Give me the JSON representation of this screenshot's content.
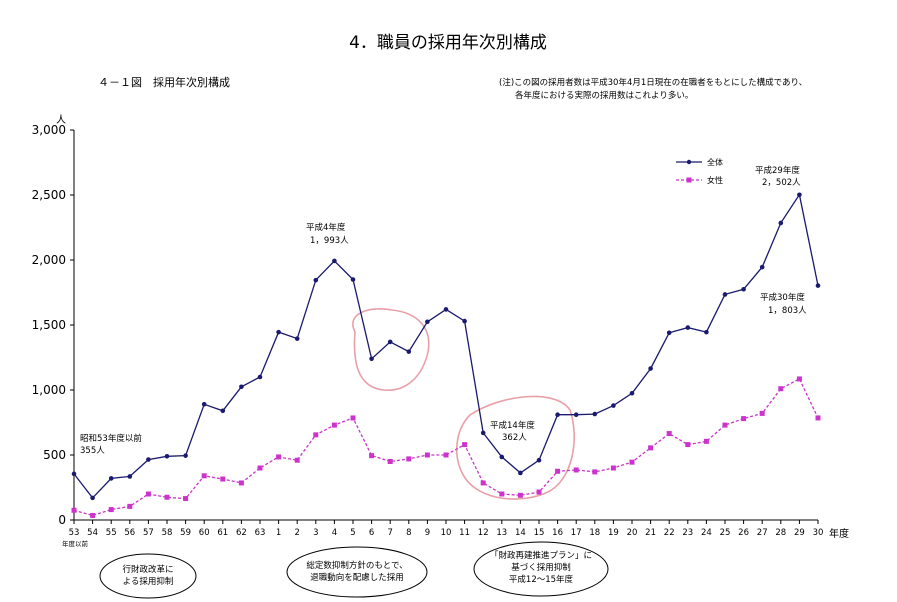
{
  "page_title": "4．職員の採用年次別構成",
  "figure_label": "４－１図　採用年次別構成",
  "note": {
    "line1": "(注)この図の採用者数は平成30年4月1日現在の在職者をもとにした構成であり、",
    "line2": "各年度における実際の採用数はこれより多い。"
  },
  "colors": {
    "total": "#1a1a6e",
    "female": "#cc33cc",
    "highlight_circle": "#e8a0a8"
  },
  "chart_data": {
    "type": "line",
    "y_unit": "人",
    "x_unit": "年度",
    "ylim": [
      0,
      3000
    ],
    "yticks": [
      "0",
      "500",
      "1,000",
      "1,500",
      "2,000",
      "2,500",
      "3,000"
    ],
    "grid": false,
    "legend_placement": "top-right",
    "categories": [
      "53",
      "54",
      "55",
      "56",
      "57",
      "58",
      "59",
      "60",
      "61",
      "62",
      "63",
      "1",
      "2",
      "3",
      "4",
      "5",
      "6",
      "7",
      "8",
      "9",
      "10",
      "11",
      "12",
      "13",
      "14",
      "15",
      "16",
      "17",
      "18",
      "19",
      "20",
      "21",
      "22",
      "23",
      "24",
      "25",
      "26",
      "27",
      "28",
      "29",
      "30"
    ],
    "first_category_note": "年度以前",
    "series": [
      {
        "name": "全体",
        "values": [
          355,
          170,
          320,
          335,
          465,
          490,
          495,
          890,
          840,
          1025,
          1100,
          1445,
          1395,
          1845,
          1993,
          1850,
          1240,
          1370,
          1295,
          1525,
          1620,
          1530,
          670,
          485,
          362,
          460,
          810,
          810,
          815,
          880,
          975,
          1165,
          1440,
          1480,
          1445,
          1735,
          1775,
          1945,
          2285,
          2502,
          1803
        ]
      },
      {
        "name": "女性",
        "values": [
          75,
          35,
          80,
          105,
          200,
          175,
          165,
          340,
          315,
          285,
          400,
          485,
          460,
          655,
          730,
          785,
          495,
          450,
          470,
          500,
          500,
          580,
          285,
          200,
          190,
          215,
          375,
          385,
          370,
          400,
          445,
          555,
          665,
          580,
          605,
          730,
          780,
          820,
          1010,
          1085,
          785
        ]
      }
    ],
    "annotations": {
      "s53_label": "昭和53年度以前",
      "s53_value": "355人",
      "h4_label": "平成4年度",
      "h4_value": "1，993人",
      "h14_label": "平成14年度",
      "h14_value": "362人",
      "h29_label": "平成29年度",
      "h29_value": "2，502人",
      "h30_label": "平成30年度",
      "h30_value": "1，803人"
    },
    "callouts": {
      "c1_line1": "行財政改革に",
      "c1_line2": "よる採用抑制",
      "c2_line1": "総定数抑制方針のもとで、",
      "c2_line2": "退職動向を配慮した採用",
      "c3_line1": "「財政再建推進プラン」に",
      "c3_line2": "基づく採用抑制",
      "c3_line3": "平成12～15年度"
    }
  }
}
